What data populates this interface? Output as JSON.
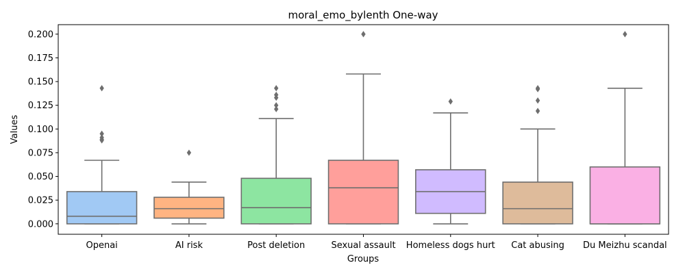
{
  "chart_data": {
    "type": "box",
    "title": "moral_emo_bylenth One-way",
    "xlabel": "Groups",
    "ylabel": "Values",
    "ylim": [
      -0.011,
      0.21
    ],
    "yticks": [
      "0.000",
      "0.025",
      "0.050",
      "0.075",
      "0.100",
      "0.125",
      "0.150",
      "0.175",
      "0.200"
    ],
    "grid": false,
    "legend": "none",
    "boxes": [
      {
        "name": "Openai",
        "color": "#a1c9f4",
        "q1": 0.0,
        "median": 0.008,
        "q3": 0.034,
        "whisker_low": 0.0,
        "whisker_high": 0.067,
        "outliers": [
          0.143,
          0.095,
          0.091,
          0.089,
          0.088
        ]
      },
      {
        "name": "AI risk",
        "color": "#ffb482",
        "q1": 0.006,
        "median": 0.016,
        "q3": 0.028,
        "whisker_low": 0.0,
        "whisker_high": 0.044,
        "outliers": [
          0.075
        ]
      },
      {
        "name": "Post deletion",
        "color": "#8de5a1",
        "q1": 0.0,
        "median": 0.017,
        "q3": 0.048,
        "whisker_low": 0.0,
        "whisker_high": 0.111,
        "outliers": [
          0.143,
          0.136,
          0.133,
          0.125,
          0.121
        ]
      },
      {
        "name": "Sexual assault",
        "color": "#ff9f9b",
        "q1": 0.0,
        "median": 0.038,
        "q3": 0.067,
        "whisker_low": 0.0,
        "whisker_high": 0.158,
        "outliers": [
          0.2
        ]
      },
      {
        "name": "Homeless dogs hurt",
        "color": "#d0bbff",
        "q1": 0.011,
        "median": 0.034,
        "q3": 0.057,
        "whisker_low": 0.0,
        "whisker_high": 0.117,
        "outliers": [
          0.129
        ]
      },
      {
        "name": "Cat abusing",
        "color": "#debb9b",
        "q1": 0.0,
        "median": 0.016,
        "q3": 0.044,
        "whisker_low": 0.0,
        "whisker_high": 0.1,
        "outliers": [
          0.143,
          0.142,
          0.13,
          0.119
        ]
      },
      {
        "name": "Du Meizhu scandal",
        "color": "#fab0e4",
        "q1": 0.0,
        "median": 0.0,
        "q3": 0.06,
        "whisker_low": 0.0,
        "whisker_high": 0.143,
        "outliers": [
          0.2
        ]
      }
    ]
  }
}
